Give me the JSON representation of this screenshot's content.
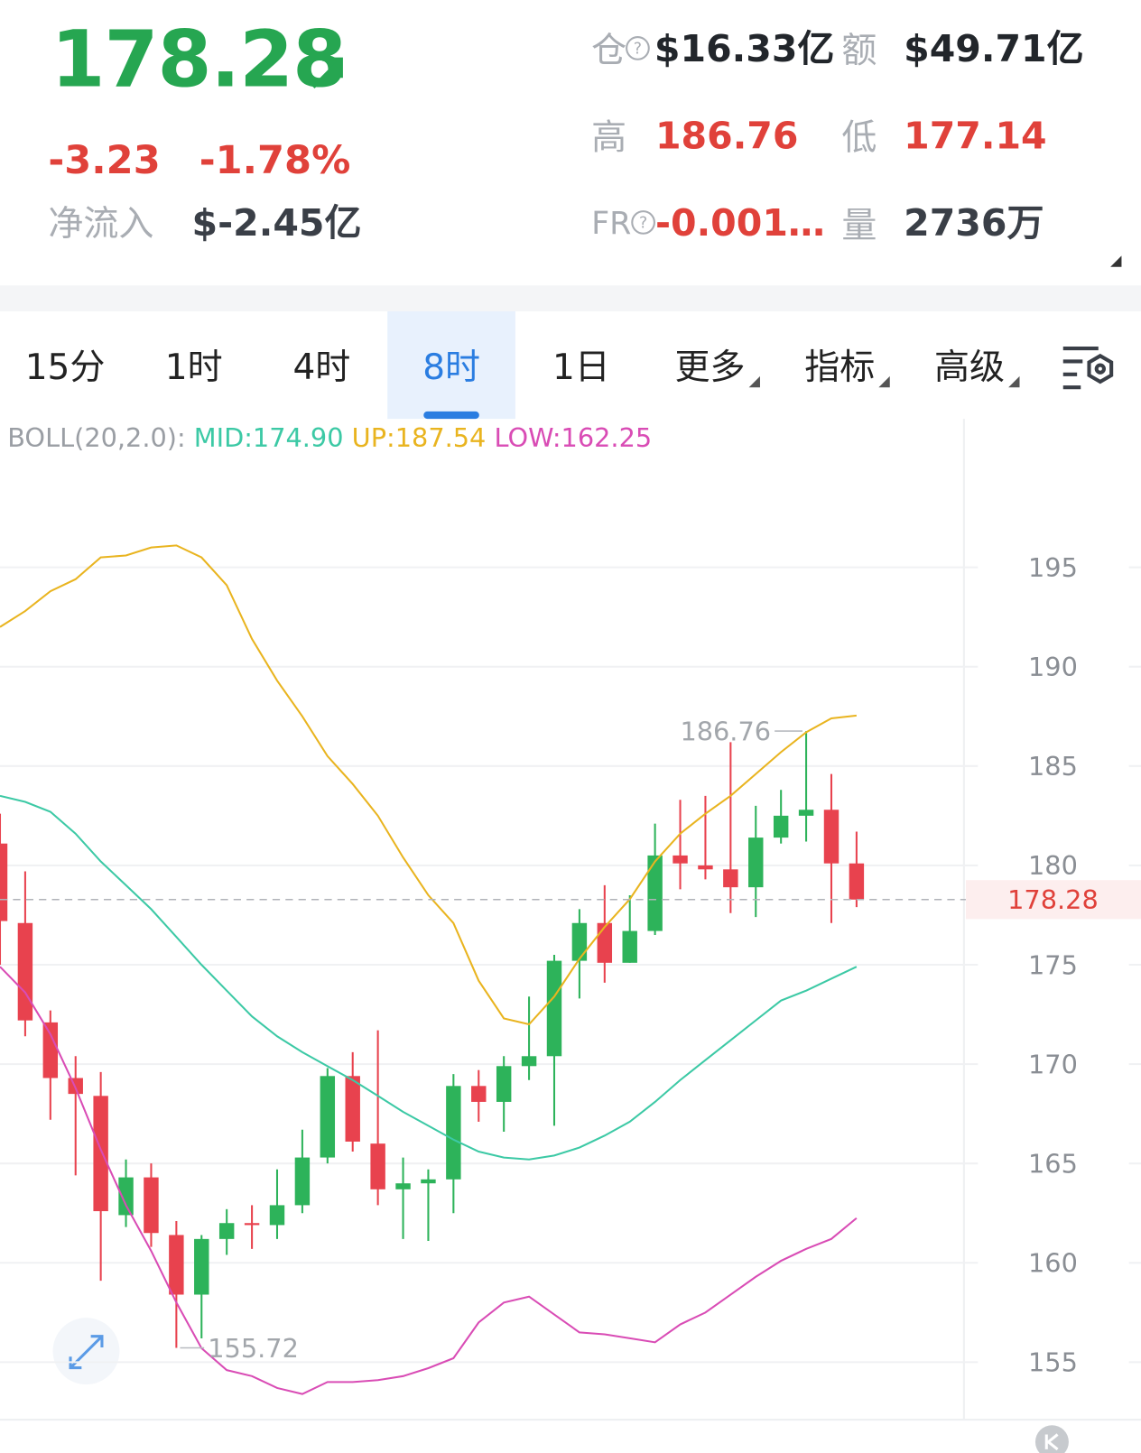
{
  "header": {
    "price": "178.28",
    "change": "-3.23",
    "change_pct": "-1.78%",
    "net_inflow_label": "净流入",
    "net_inflow": "$-2.45亿",
    "stats": [
      {
        "label": "仓",
        "value": "$16.33亿"
      },
      {
        "label": "额",
        "value": "$49.71亿"
      },
      {
        "label": "高",
        "value": "186.76"
      },
      {
        "label": "低",
        "value": "177.14"
      },
      {
        "label": "FR",
        "value": "-0.001…"
      },
      {
        "label": "量",
        "value": "2736万"
      }
    ]
  },
  "tabs": [
    "15分",
    "1时",
    "4时",
    "8时",
    "1日",
    "更多",
    "指标",
    "高级"
  ],
  "selected_tab": 3,
  "chart_data": {
    "type": "candlestick",
    "legend": {
      "title": "BOLL(20,2.0):",
      "items": [
        "MID:174.90",
        "UP:187.54",
        "LOW:162.25"
      ]
    },
    "open": [
      181.1,
      177.1,
      172.1,
      169.3,
      168.4,
      162.4,
      164.3,
      161.4,
      158.4,
      161.2,
      162.0,
      161.9,
      162.9,
      165.3,
      169.4,
      166.0,
      163.7,
      164.0,
      164.2,
      168.9,
      168.1,
      169.9,
      170.4,
      175.2,
      177.1,
      175.1,
      176.7,
      180.5,
      180.0,
      179.8,
      178.9,
      181.4,
      182.5,
      182.8,
      180.1
    ],
    "high": [
      182.6,
      179.7,
      172.7,
      170.4,
      169.6,
      165.2,
      165.0,
      162.1,
      161.4,
      162.7,
      162.9,
      164.7,
      166.7,
      169.8,
      170.6,
      171.7,
      165.3,
      164.7,
      169.5,
      169.7,
      170.4,
      173.4,
      175.5,
      177.8,
      179.0,
      178.5,
      182.1,
      183.3,
      183.5,
      186.2,
      183.0,
      183.8,
      186.76,
      184.6,
      181.7
    ],
    "low": [
      175.0,
      171.4,
      167.2,
      164.4,
      159.1,
      161.8,
      160.8,
      155.72,
      156.2,
      160.4,
      160.7,
      161.2,
      162.5,
      165.0,
      165.6,
      162.9,
      161.2,
      161.1,
      162.5,
      167.1,
      166.6,
      169.2,
      166.9,
      173.3,
      174.1,
      175.1,
      176.5,
      178.8,
      179.3,
      177.6,
      177.4,
      181.1,
      181.2,
      177.1,
      177.9
    ],
    "close": [
      177.2,
      172.2,
      169.3,
      168.5,
      162.6,
      164.3,
      161.5,
      158.4,
      161.2,
      162.0,
      161.9,
      162.9,
      165.3,
      169.4,
      166.1,
      163.7,
      164.0,
      164.2,
      168.9,
      168.1,
      169.9,
      170.4,
      175.2,
      177.1,
      175.1,
      176.7,
      180.5,
      180.1,
      179.8,
      178.9,
      181.4,
      182.5,
      182.8,
      180.1,
      178.28
    ],
    "up_color": "#2db35a",
    "down_color": "#e8424e",
    "series": [
      {
        "name": "MID",
        "color": "#3cc9a5",
        "values": [
          183.5,
          183.2,
          182.7,
          181.6,
          180.2,
          179.0,
          177.8,
          176.4,
          175.0,
          173.7,
          172.4,
          171.4,
          170.6,
          169.9,
          169.2,
          168.4,
          167.6,
          166.9,
          166.2,
          165.6,
          165.3,
          165.2,
          165.4,
          165.8,
          166.4,
          167.1,
          168.1,
          169.2,
          170.2,
          171.2,
          172.2,
          173.2,
          173.7,
          174.3,
          174.9
        ]
      },
      {
        "name": "UP",
        "color": "#e9b41f",
        "values": [
          192.0,
          192.8,
          193.8,
          194.4,
          195.5,
          195.6,
          196.0,
          196.1,
          195.5,
          194.1,
          191.4,
          189.3,
          187.5,
          185.5,
          184.1,
          182.5,
          180.4,
          178.5,
          177.1,
          174.2,
          172.3,
          172.0,
          173.4,
          175.3,
          176.9,
          178.3,
          180.2,
          181.6,
          182.6,
          183.5,
          184.6,
          185.7,
          186.7,
          187.4,
          187.54
        ]
      },
      {
        "name": "LOW",
        "color": "#d94cb5",
        "values": [
          174.9,
          173.6,
          171.5,
          168.8,
          165.7,
          162.9,
          160.6,
          158.0,
          155.7,
          154.6,
          154.3,
          153.7,
          153.4,
          154.0,
          154.0,
          154.1,
          154.3,
          154.7,
          155.2,
          157.0,
          158.0,
          158.3,
          157.4,
          156.5,
          156.4,
          156.2,
          156.0,
          156.9,
          157.5,
          158.4,
          159.3,
          160.1,
          160.7,
          161.2,
          162.25
        ]
      }
    ],
    "ylim": [
      152.2,
      200.7
    ],
    "yticks": [
      155,
      160,
      165,
      170,
      175,
      180,
      185,
      190,
      195
    ],
    "grid": true
  }
}
